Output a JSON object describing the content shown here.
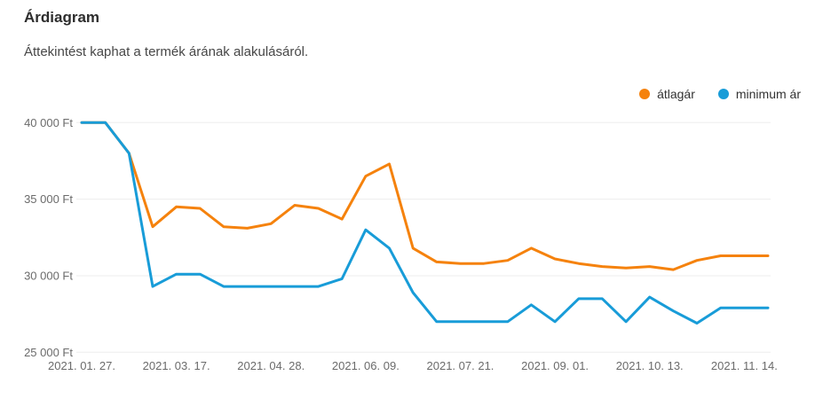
{
  "header": {
    "title": "Árdiagram",
    "subtitle": "Áttekintést kaphat a termék árának alakulásáról."
  },
  "colors": {
    "average_line": "#F5820D",
    "minimum_line": "#189CD8",
    "gridline": "#ededed",
    "axis_text": "#6b6b6b"
  },
  "chart_data": {
    "type": "line",
    "title": "Árdiagram",
    "unit": "Ft",
    "ylim": [
      25000,
      40000
    ],
    "grid": "horizontal",
    "legend_position": "top-right",
    "y_ticks": [
      {
        "label": "40 000 Ft",
        "value": 40000
      },
      {
        "label": "35 000 Ft",
        "value": 35000
      },
      {
        "label": "30 000 Ft",
        "value": 30000
      },
      {
        "label": "25 000 Ft",
        "value": 25000
      }
    ],
    "x_ticks": [
      {
        "label": "2021. 01. 27.",
        "index": 0
      },
      {
        "label": "2021. 03. 17.",
        "index": 4
      },
      {
        "label": "2021. 04. 28.",
        "index": 8
      },
      {
        "label": "2021. 06. 09.",
        "index": 12
      },
      {
        "label": "2021. 07. 21.",
        "index": 16
      },
      {
        "label": "2021. 09. 01.",
        "index": 20
      },
      {
        "label": "2021. 10. 13.",
        "index": 24
      },
      {
        "label": "2021. 11. 14.",
        "index": 28
      }
    ],
    "point_count": 30,
    "series": [
      {
        "name": "átlagár",
        "color": "#F5820D",
        "values": [
          40000,
          40000,
          38000,
          33200,
          34500,
          34400,
          33200,
          33100,
          33400,
          34600,
          34400,
          33700,
          36500,
          37300,
          31800,
          30900,
          30800,
          30800,
          31000,
          31800,
          31100,
          30800,
          30600,
          30500,
          30600,
          30400,
          31000,
          31300,
          31300,
          31300
        ]
      },
      {
        "name": "minimum ár",
        "color": "#189CD8",
        "values": [
          40000,
          40000,
          38000,
          29300,
          30100,
          30100,
          29300,
          29300,
          29300,
          29300,
          29300,
          29800,
          33000,
          31800,
          28900,
          27000,
          27000,
          27000,
          27000,
          28100,
          27000,
          28500,
          28500,
          27000,
          28600,
          27700,
          26900,
          27900,
          27900,
          27900
        ]
      }
    ]
  }
}
